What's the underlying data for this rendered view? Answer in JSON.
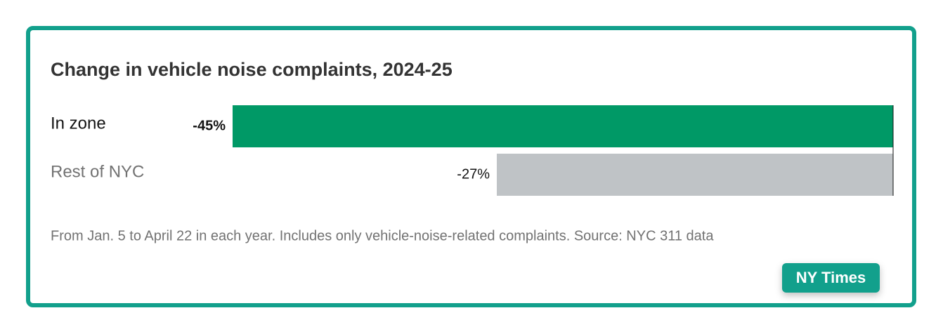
{
  "chart_data": {
    "type": "hbar",
    "title": "Change in vehicle noise complaints, 2024-25",
    "categories": [
      "In zone",
      "Rest of NYC"
    ],
    "values": [
      -45,
      -27
    ],
    "value_labels": [
      "-45%",
      "-27%"
    ],
    "colors": [
      "#009966",
      "#bfc3c6"
    ],
    "category_label_colors": [
      "#121212",
      "#727272"
    ],
    "xlim": [
      -45,
      0
    ],
    "note": "From Jan. 5 to April 22 in each year. Includes only vehicle-noise-related complaints. Source: NYC 311 data"
  },
  "badge": "NY Times"
}
